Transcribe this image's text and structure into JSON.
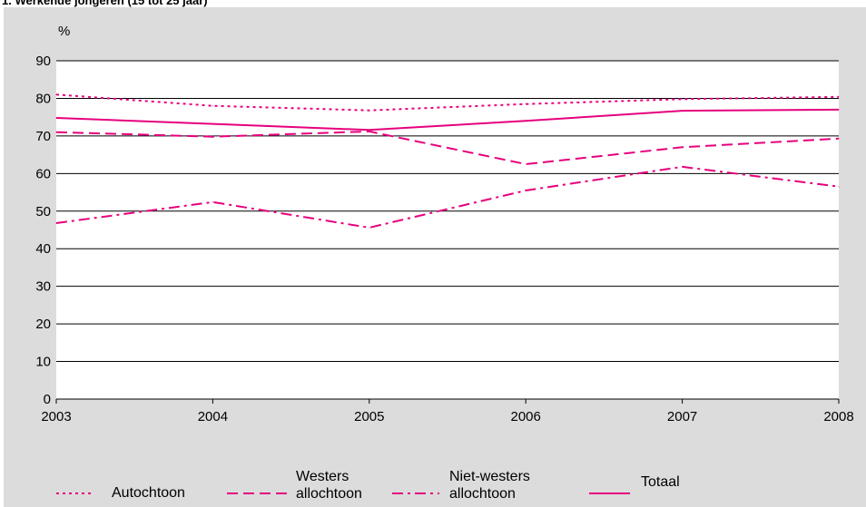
{
  "chart_data": {
    "type": "line",
    "title": "1. Werkende jongeren (15 tot 25 jaar)",
    "ylabel": "%",
    "xlabel": "",
    "x": [
      2003,
      2004,
      2005,
      2006,
      2007,
      2008
    ],
    "ylim": [
      0,
      90
    ],
    "yticks": [
      0,
      10,
      20,
      30,
      40,
      50,
      60,
      70,
      80,
      90
    ],
    "grid": true,
    "legend_position": "bottom",
    "series": [
      {
        "name": "Autochtoon",
        "style": "dotted",
        "color": "#e6007e",
        "values": [
          81,
          78,
          76.8,
          78.5,
          79.8,
          80.4
        ]
      },
      {
        "name": "Westers allochtoon",
        "style": "dashed",
        "color": "#e6007e",
        "values": [
          71,
          69.8,
          71.2,
          62.5,
          67,
          69.3
        ]
      },
      {
        "name": "Niet-westers allochtoon",
        "style": "dashdot",
        "color": "#e6007e",
        "values": [
          46.8,
          52.4,
          45.6,
          55.5,
          61.8,
          56.5
        ]
      },
      {
        "name": "Totaal",
        "style": "solid",
        "color": "#e6007e",
        "values": [
          74.8,
          73.2,
          71.6,
          74,
          76.7,
          77
        ]
      }
    ]
  }
}
